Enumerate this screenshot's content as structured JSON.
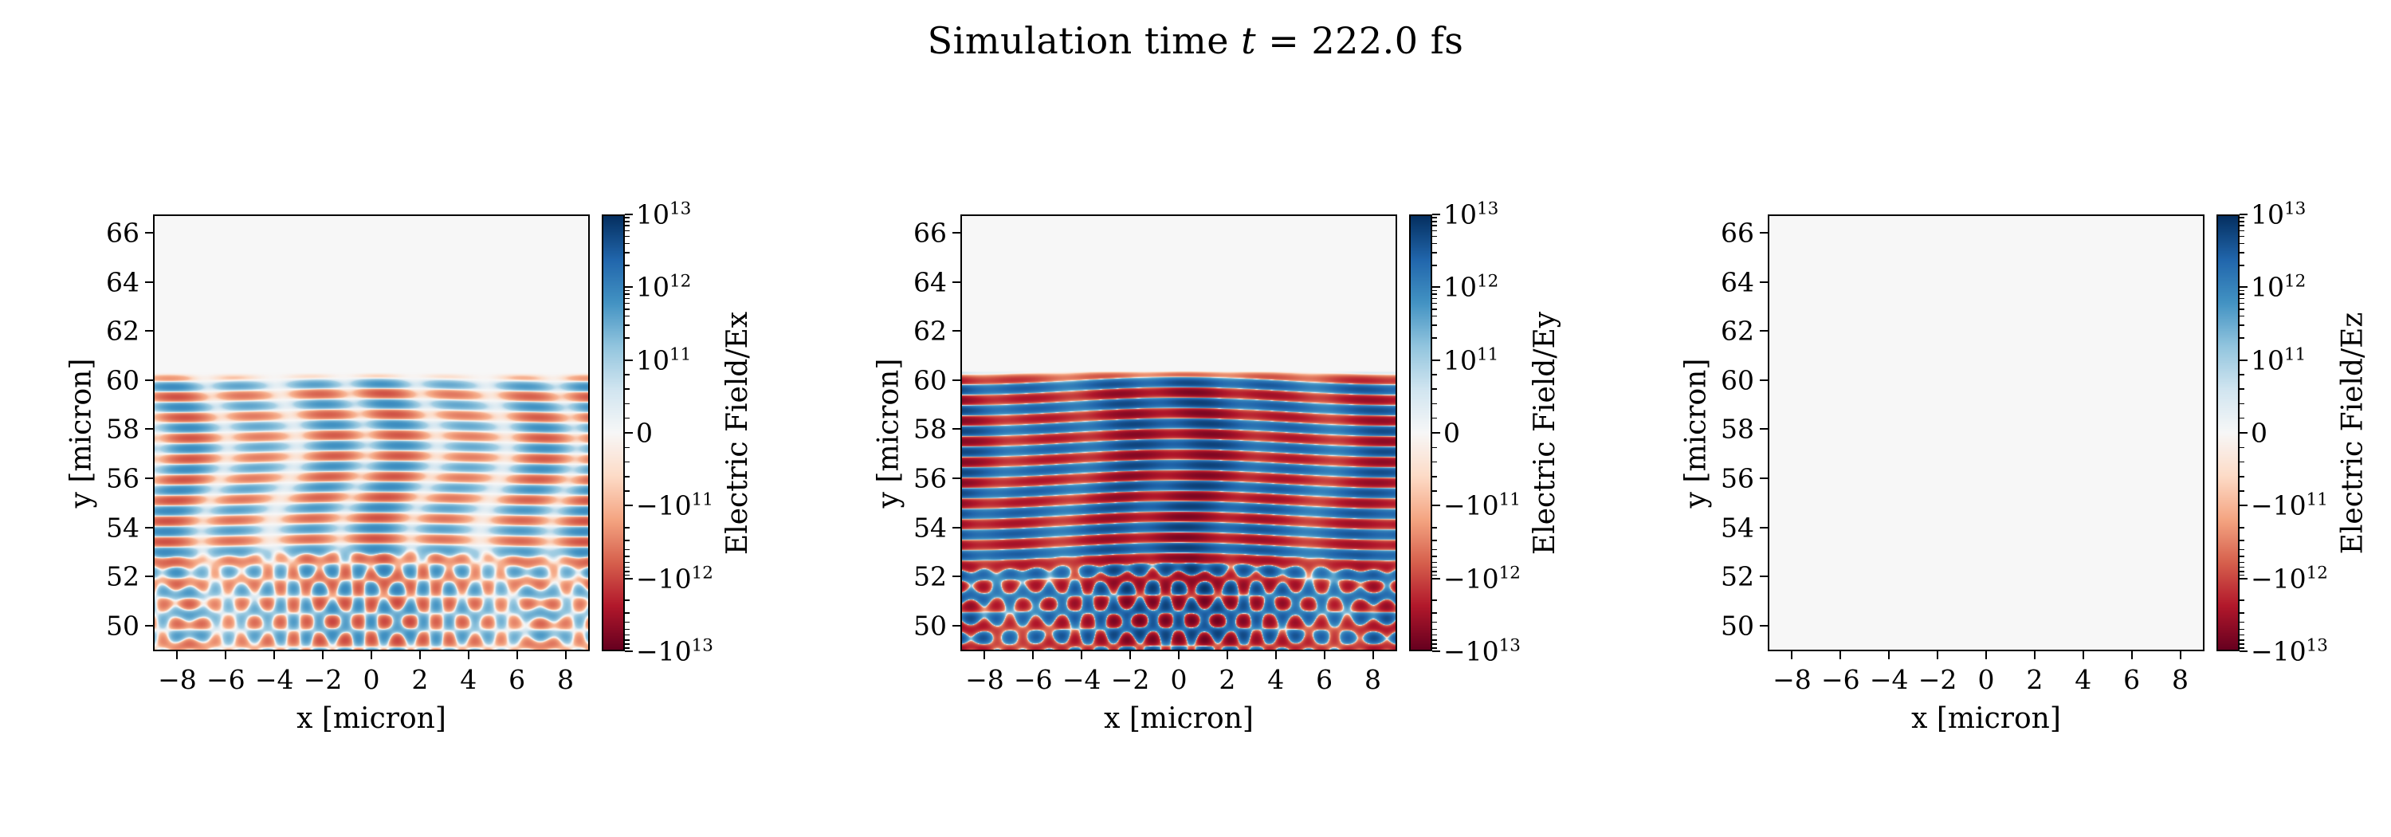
{
  "palette": {
    "background": "#ffffff",
    "axes_background": "#f7f7f7",
    "spine_color": "#000000",
    "rdbu_stops": [
      "#67001f",
      "#b2182b",
      "#d6604d",
      "#f4a582",
      "#fddbc7",
      "#f7f7f7",
      "#d1e5f0",
      "#92c5de",
      "#4393c3",
      "#2166ac",
      "#053061"
    ]
  },
  "title": {
    "text_before_var": "Simulation time ",
    "variable": "t",
    "text_after_var": " = 222.0 fs",
    "full_text": "Simulation time t = 222.0 fs"
  },
  "chart_data": [
    {
      "type": "heatmap",
      "name": "Ex",
      "xlabel": "x [micron]",
      "ylabel": "y [micron]",
      "xlim": [
        -9,
        9
      ],
      "ylim": [
        48.95,
        66.75
      ],
      "grid": false,
      "xticks": {
        "values": [
          -8,
          -6,
          -4,
          -2,
          0,
          2,
          4,
          6,
          8
        ],
        "labels": [
          "−8",
          "−6",
          "−4",
          "−2",
          "0",
          "2",
          "4",
          "6",
          "8"
        ]
      },
      "yticks": {
        "values": [
          50,
          52,
          54,
          56,
          58,
          60,
          62,
          64,
          66
        ],
        "labels": [
          "50",
          "52",
          "54",
          "56",
          "58",
          "60",
          "62",
          "64",
          "66"
        ]
      },
      "colorbar": {
        "label": "Electric Field/Ex",
        "cmap": "RdBu",
        "scale": "symlog",
        "linthresh": 100000000000.0,
        "vmin": -10000000000000.0,
        "vmax": 10000000000000.0,
        "tick_values": [
          10000000000000.0,
          1000000000000.0,
          100000000000.0,
          0,
          -100000000000.0,
          -1000000000000.0,
          -10000000000000.0
        ],
        "tick_labels": [
          "10¹³",
          "10¹²",
          "10¹¹",
          "0",
          "−10¹¹",
          "−10¹²",
          "−10¹³"
        ]
      },
      "field": {
        "kind": "waves",
        "description": "Moderate horizontal interference fringes (|Ex| up to ~1e12) below the plasma surface at y ≈ 60 micron, broken into patches; crossed diagonal wavefronts below y ≈ 52; field ≈ 0 above the surface.",
        "amplitude": 900000000000.0,
        "surface_y": 60.1,
        "stripe_wavelength": 0.85,
        "stripe_mod_wavelength": 2.9,
        "mod_depth": 0.45,
        "envelope_wavelength": 8.5,
        "curve": 0.07,
        "diag_top": 53.4,
        "diag_angle_deg": 52,
        "stripe_weight": 0.95,
        "diag_weight": 0.85
      }
    },
    {
      "type": "heatmap",
      "name": "Ey",
      "xlabel": "x [micron]",
      "ylabel": "y [micron]",
      "xlim": [
        -9,
        9
      ],
      "ylim": [
        48.95,
        66.75
      ],
      "grid": false,
      "xticks": {
        "values": [
          -8,
          -6,
          -4,
          -2,
          0,
          2,
          4,
          6,
          8
        ],
        "labels": [
          "−8",
          "−6",
          "−4",
          "−2",
          "0",
          "2",
          "4",
          "6",
          "8"
        ]
      },
      "yticks": {
        "values": [
          50,
          52,
          54,
          56,
          58,
          60,
          62,
          64,
          66
        ],
        "labels": [
          "50",
          "52",
          "54",
          "56",
          "58",
          "60",
          "62",
          "64",
          "66"
        ]
      },
      "colorbar": {
        "label": "Electric Field/Ey",
        "cmap": "RdBu",
        "scale": "symlog",
        "linthresh": 100000000000.0,
        "vmin": -10000000000000.0,
        "vmax": 10000000000000.0,
        "tick_values": [
          10000000000000.0,
          1000000000000.0,
          100000000000.0,
          0,
          -100000000000.0,
          -1000000000000.0,
          -10000000000000.0
        ],
        "tick_labels": [
          "10¹³",
          "10¹²",
          "10¹¹",
          "0",
          "−10¹¹",
          "−10¹²",
          "−10¹³"
        ]
      },
      "field": {
        "kind": "waves",
        "description": "Strong saturated horizontal fringes (|Ey| ~ 5e12–1e13) between y ≈ 52 and the plasma surface at y ≈ 60 micron, slightly bowed; crossed diagonal wavefronts below y ≈ 52; field ≈ 0 above the surface.",
        "amplitude": 7000000000000.0,
        "surface_y": 60.15,
        "stripe_wavelength": 0.85,
        "stripe_mod_wavelength": 3.4,
        "mod_depth": 0.3,
        "envelope_wavelength": 11,
        "curve": 0.16,
        "diag_top": 53.0,
        "diag_angle_deg": 52,
        "stripe_weight": 1.0,
        "diag_weight": 0.9
      }
    },
    {
      "type": "heatmap",
      "name": "Ez",
      "xlabel": "x [micron]",
      "ylabel": "y [micron]",
      "xlim": [
        -9,
        9
      ],
      "ylim": [
        48.95,
        66.75
      ],
      "grid": false,
      "xticks": {
        "values": [
          -8,
          -6,
          -4,
          -2,
          0,
          2,
          4,
          6,
          8
        ],
        "labels": [
          "−8",
          "−6",
          "−4",
          "−2",
          "0",
          "2",
          "4",
          "6",
          "8"
        ]
      },
      "yticks": {
        "values": [
          50,
          52,
          54,
          56,
          58,
          60,
          62,
          64,
          66
        ],
        "labels": [
          "50",
          "52",
          "54",
          "56",
          "58",
          "60",
          "62",
          "64",
          "66"
        ]
      },
      "colorbar": {
        "label": "Electric Field/Ez",
        "cmap": "RdBu",
        "scale": "symlog",
        "linthresh": 100000000000.0,
        "vmin": -10000000000000.0,
        "vmax": 10000000000000.0,
        "tick_values": [
          10000000000000.0,
          1000000000000.0,
          100000000000.0,
          0,
          -100000000000.0,
          -1000000000000.0,
          -10000000000000.0
        ],
        "tick_labels": [
          "10¹³",
          "10¹²",
          "10¹¹",
          "0",
          "−10¹¹",
          "−10¹²",
          "−10¹³"
        ]
      },
      "field": {
        "kind": "zero",
        "description": "Field ≈ 0 everywhere; uniform neutral (near-white) map.",
        "amplitude": 0
      }
    }
  ]
}
